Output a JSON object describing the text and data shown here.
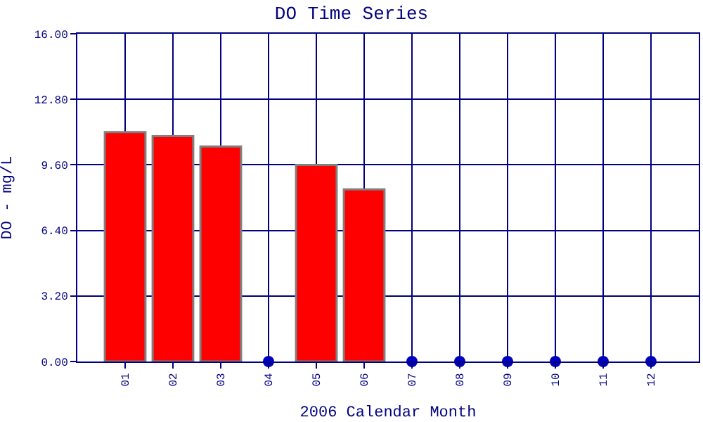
{
  "chart_data": {
    "type": "bar",
    "title": "DO Time Series",
    "xlabel": "2006 Calendar Month",
    "ylabel": "DO - mg/L",
    "categories": [
      "01",
      "02",
      "03",
      "04",
      "05",
      "06",
      "07",
      "08",
      "09",
      "10",
      "11",
      "12"
    ],
    "series": [
      {
        "color": "#ff0000",
        "values": [
          11.2,
          11.0,
          10.5,
          null,
          9.6,
          8.4,
          null,
          null,
          null,
          null,
          null,
          null
        ]
      },
      {
        "type": "scatter",
        "color": "#0000c0",
        "x": [
          "04",
          "07",
          "08",
          "09",
          "10",
          "11",
          "12"
        ],
        "values": [
          0,
          0,
          0,
          0,
          0,
          0,
          0
        ]
      }
    ],
    "ylim": [
      0,
      16
    ],
    "yticks": [
      {
        "value": 0,
        "label": "0.00"
      },
      {
        "value": 3.2,
        "label": "3.20"
      },
      {
        "value": 6.4,
        "label": "6.40"
      },
      {
        "value": 9.6,
        "label": "9.60"
      },
      {
        "value": 12.8,
        "label": "12.80"
      },
      {
        "value": 16,
        "label": "16.00"
      }
    ],
    "grid": true,
    "marker": "circle"
  }
}
